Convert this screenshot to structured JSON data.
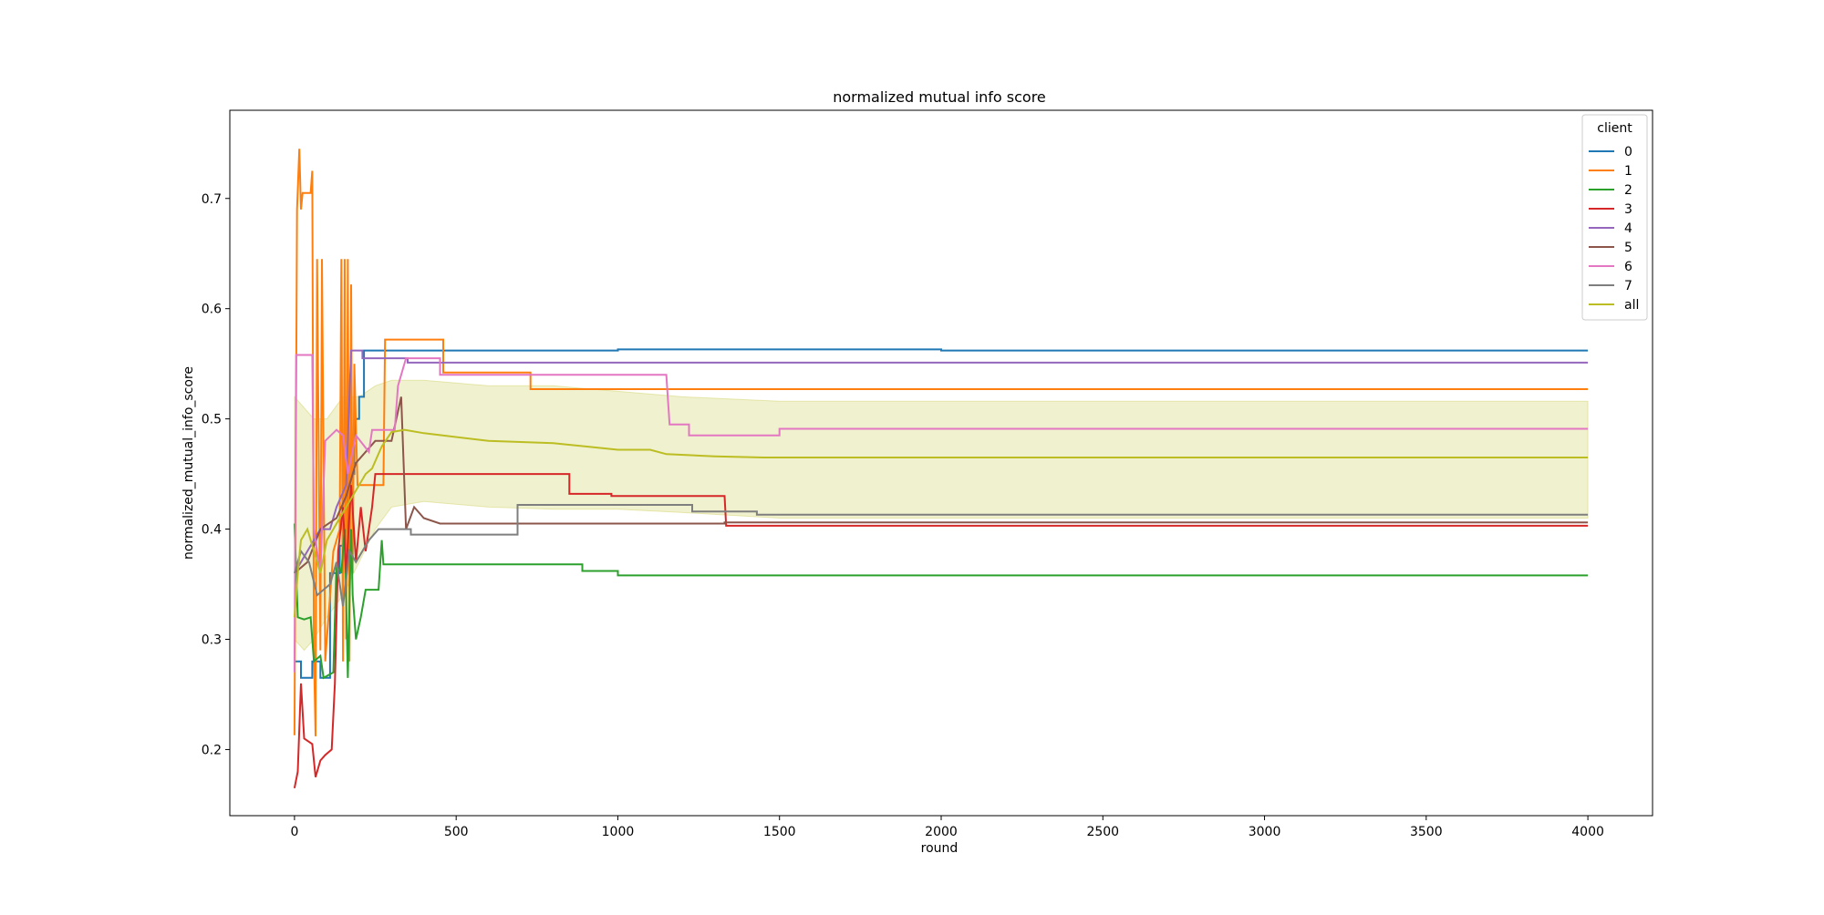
{
  "chart_data": {
    "type": "line",
    "title": "normalized mutual info score",
    "xlabel": "round",
    "ylabel": "normalized_mutual_info_score",
    "xlim": [
      -200,
      4200
    ],
    "ylim": [
      0.14,
      0.78
    ],
    "xticks": [
      0,
      500,
      1000,
      1500,
      2000,
      2500,
      3000,
      3500,
      4000
    ],
    "yticks": [
      0.2,
      0.3,
      0.4,
      0.5,
      0.6,
      0.7
    ],
    "grid": false,
    "legend": {
      "title": "client",
      "placement": "top-right"
    },
    "series": [
      {
        "name": "0",
        "color": "#1f77b4",
        "points": [
          [
            0,
            0.28
          ],
          [
            20,
            0.28
          ],
          [
            20,
            0.265
          ],
          [
            55,
            0.265
          ],
          [
            55,
            0.28
          ],
          [
            80,
            0.28
          ],
          [
            80,
            0.265
          ],
          [
            110,
            0.265
          ],
          [
            110,
            0.36
          ],
          [
            140,
            0.36
          ],
          [
            140,
            0.385
          ],
          [
            165,
            0.385
          ],
          [
            165,
            0.45
          ],
          [
            185,
            0.45
          ],
          [
            185,
            0.5
          ],
          [
            200,
            0.5
          ],
          [
            200,
            0.52
          ],
          [
            215,
            0.52
          ],
          [
            215,
            0.562
          ],
          [
            1000,
            0.562
          ],
          [
            1000,
            0.563
          ],
          [
            2000,
            0.563
          ],
          [
            2000,
            0.562
          ],
          [
            4000,
            0.562
          ]
        ]
      },
      {
        "name": "1",
        "color": "#ff7f0e",
        "points": [
          [
            0,
            0.213
          ],
          [
            8,
            0.69
          ],
          [
            15,
            0.745
          ],
          [
            20,
            0.69
          ],
          [
            25,
            0.705
          ],
          [
            50,
            0.705
          ],
          [
            55,
            0.725
          ],
          [
            60,
            0.29
          ],
          [
            65,
            0.212
          ],
          [
            70,
            0.645
          ],
          [
            80,
            0.29
          ],
          [
            85,
            0.645
          ],
          [
            95,
            0.28
          ],
          [
            120,
            0.38
          ],
          [
            140,
            0.4
          ],
          [
            145,
            0.645
          ],
          [
            150,
            0.28
          ],
          [
            155,
            0.645
          ],
          [
            160,
            0.3
          ],
          [
            165,
            0.645
          ],
          [
            170,
            0.28
          ],
          [
            175,
            0.622
          ],
          [
            180,
            0.36
          ],
          [
            185,
            0.55
          ],
          [
            195,
            0.44
          ],
          [
            275,
            0.44
          ],
          [
            280,
            0.572
          ],
          [
            460,
            0.572
          ],
          [
            460,
            0.542
          ],
          [
            730,
            0.542
          ],
          [
            730,
            0.527
          ],
          [
            4000,
            0.527
          ]
        ]
      },
      {
        "name": "2",
        "color": "#2ca02c",
        "points": [
          [
            0,
            0.405
          ],
          [
            10,
            0.32
          ],
          [
            30,
            0.318
          ],
          [
            50,
            0.32
          ],
          [
            60,
            0.28
          ],
          [
            80,
            0.285
          ],
          [
            90,
            0.265
          ],
          [
            120,
            0.27
          ],
          [
            130,
            0.37
          ],
          [
            145,
            0.36
          ],
          [
            155,
            0.4
          ],
          [
            165,
            0.265
          ],
          [
            175,
            0.4
          ],
          [
            180,
            0.34
          ],
          [
            190,
            0.3
          ],
          [
            205,
            0.32
          ],
          [
            220,
            0.345
          ],
          [
            260,
            0.345
          ],
          [
            270,
            0.39
          ],
          [
            275,
            0.368
          ],
          [
            890,
            0.368
          ],
          [
            890,
            0.362
          ],
          [
            1000,
            0.362
          ],
          [
            1000,
            0.358
          ],
          [
            4000,
            0.358
          ]
        ]
      },
      {
        "name": "3",
        "color": "#d62728",
        "points": [
          [
            0,
            0.165
          ],
          [
            10,
            0.18
          ],
          [
            20,
            0.26
          ],
          [
            30,
            0.21
          ],
          [
            55,
            0.205
          ],
          [
            65,
            0.175
          ],
          [
            80,
            0.19
          ],
          [
            95,
            0.195
          ],
          [
            115,
            0.2
          ],
          [
            125,
            0.26
          ],
          [
            135,
            0.38
          ],
          [
            150,
            0.42
          ],
          [
            160,
            0.36
          ],
          [
            175,
            0.44
          ],
          [
            190,
            0.37
          ],
          [
            205,
            0.42
          ],
          [
            220,
            0.38
          ],
          [
            230,
            0.4
          ],
          [
            240,
            0.42
          ],
          [
            250,
            0.45
          ],
          [
            850,
            0.45
          ],
          [
            850,
            0.432
          ],
          [
            980,
            0.432
          ],
          [
            980,
            0.43
          ],
          [
            1330,
            0.43
          ],
          [
            1335,
            0.403
          ],
          [
            4000,
            0.403
          ]
        ]
      },
      {
        "name": "4",
        "color": "#9467bd",
        "points": [
          [
            0,
            0.36
          ],
          [
            40,
            0.38
          ],
          [
            80,
            0.4
          ],
          [
            110,
            0.4
          ],
          [
            130,
            0.42
          ],
          [
            160,
            0.44
          ],
          [
            175,
            0.562
          ],
          [
            210,
            0.562
          ],
          [
            210,
            0.555
          ],
          [
            350,
            0.555
          ],
          [
            350,
            0.551
          ],
          [
            4000,
            0.551
          ]
        ]
      },
      {
        "name": "5",
        "color": "#8c564b",
        "points": [
          [
            0,
            0.36
          ],
          [
            40,
            0.37
          ],
          [
            80,
            0.4
          ],
          [
            130,
            0.41
          ],
          [
            160,
            0.43
          ],
          [
            190,
            0.46
          ],
          [
            250,
            0.48
          ],
          [
            300,
            0.48
          ],
          [
            330,
            0.52
          ],
          [
            345,
            0.4
          ],
          [
            370,
            0.42
          ],
          [
            400,
            0.41
          ],
          [
            450,
            0.405
          ],
          [
            1330,
            0.405
          ],
          [
            1330,
            0.406
          ],
          [
            4000,
            0.406
          ]
        ]
      },
      {
        "name": "6",
        "color": "#e377c2",
        "points": [
          [
            0,
            0.27
          ],
          [
            5,
            0.558
          ],
          [
            55,
            0.558
          ],
          [
            60,
            0.4
          ],
          [
            80,
            0.36
          ],
          [
            95,
            0.48
          ],
          [
            130,
            0.49
          ],
          [
            150,
            0.485
          ],
          [
            165,
            0.45
          ],
          [
            190,
            0.485
          ],
          [
            230,
            0.47
          ],
          [
            240,
            0.49
          ],
          [
            310,
            0.49
          ],
          [
            320,
            0.53
          ],
          [
            345,
            0.555
          ],
          [
            450,
            0.555
          ],
          [
            450,
            0.54
          ],
          [
            1150,
            0.54
          ],
          [
            1160,
            0.495
          ],
          [
            1220,
            0.495
          ],
          [
            1220,
            0.485
          ],
          [
            1500,
            0.485
          ],
          [
            1500,
            0.491
          ],
          [
            4000,
            0.491
          ]
        ]
      },
      {
        "name": "7",
        "color": "#7f7f7f",
        "points": [
          [
            0,
            0.36
          ],
          [
            20,
            0.38
          ],
          [
            45,
            0.37
          ],
          [
            70,
            0.34
          ],
          [
            110,
            0.35
          ],
          [
            130,
            0.37
          ],
          [
            150,
            0.33
          ],
          [
            170,
            0.38
          ],
          [
            190,
            0.37
          ],
          [
            230,
            0.39
          ],
          [
            260,
            0.4
          ],
          [
            360,
            0.4
          ],
          [
            360,
            0.395
          ],
          [
            690,
            0.395
          ],
          [
            690,
            0.422
          ],
          [
            1230,
            0.422
          ],
          [
            1230,
            0.416
          ],
          [
            1430,
            0.416
          ],
          [
            1430,
            0.413
          ],
          [
            4000,
            0.413
          ]
        ]
      },
      {
        "name": "all",
        "color": "#bcbd22",
        "points": [
          [
            0,
            0.32
          ],
          [
            10,
            0.36
          ],
          [
            20,
            0.39
          ],
          [
            40,
            0.4
          ],
          [
            60,
            0.38
          ],
          [
            80,
            0.36
          ],
          [
            100,
            0.39
          ],
          [
            120,
            0.4
          ],
          [
            140,
            0.41
          ],
          [
            160,
            0.42
          ],
          [
            180,
            0.43
          ],
          [
            200,
            0.44
          ],
          [
            220,
            0.45
          ],
          [
            240,
            0.455
          ],
          [
            270,
            0.475
          ],
          [
            300,
            0.488
          ],
          [
            340,
            0.49
          ],
          [
            400,
            0.487
          ],
          [
            600,
            0.48
          ],
          [
            800,
            0.478
          ],
          [
            1000,
            0.472
          ],
          [
            1100,
            0.472
          ],
          [
            1150,
            0.468
          ],
          [
            1300,
            0.466
          ],
          [
            1450,
            0.465
          ],
          [
            4000,
            0.465
          ]
        ],
        "band": [
          [
            0,
            0.3,
            0.52
          ],
          [
            30,
            0.29,
            0.51
          ],
          [
            60,
            0.3,
            0.5
          ],
          [
            100,
            0.32,
            0.5
          ],
          [
            150,
            0.34,
            0.52
          ],
          [
            200,
            0.37,
            0.52
          ],
          [
            250,
            0.4,
            0.53
          ],
          [
            300,
            0.42,
            0.535
          ],
          [
            400,
            0.425,
            0.535
          ],
          [
            600,
            0.42,
            0.53
          ],
          [
            800,
            0.418,
            0.53
          ],
          [
            1000,
            0.418,
            0.525
          ],
          [
            1200,
            0.415,
            0.52
          ],
          [
            1500,
            0.41,
            0.516
          ],
          [
            2000,
            0.41,
            0.516
          ],
          [
            3000,
            0.41,
            0.516
          ],
          [
            4000,
            0.41,
            0.516
          ]
        ]
      }
    ]
  }
}
